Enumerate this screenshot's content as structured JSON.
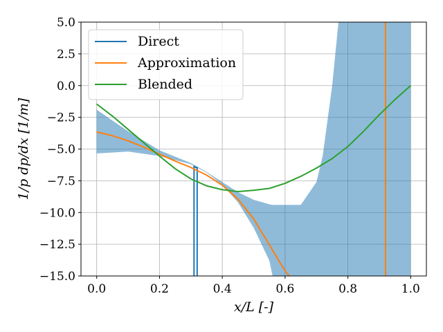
{
  "chart_data": {
    "type": "line",
    "title": "",
    "xlabel": "x/L [-]",
    "ylabel": "1/p dp/dx [1/m]",
    "xlim": [
      -0.05,
      1.05
    ],
    "ylim": [
      -15,
      5
    ],
    "x_ticks": [
      0.0,
      0.2,
      0.4,
      0.6,
      0.8,
      1.0
    ],
    "x_tick_labels": [
      "0.0",
      "0.2",
      "0.4",
      "0.6",
      "0.8",
      "1.0"
    ],
    "y_ticks": [
      5.0,
      2.5,
      0.0,
      -2.5,
      -5.0,
      -7.5,
      -10.0,
      -12.5,
      -15.0
    ],
    "y_tick_labels": [
      "5.0",
      "2.5",
      "0.0",
      "−2.5",
      "−5.0",
      "−7.5",
      "−10.0",
      "−12.5",
      "−15.0"
    ],
    "grid": true,
    "legend_position": "top-left",
    "colors": {
      "direct": "#1f77b4",
      "approximation": "#ff7f0e",
      "blended": "#2ca02c",
      "band": "#1f77b4",
      "grid": "#b0b0b0"
    },
    "band": {
      "x": [
        0.0,
        0.1,
        0.2,
        0.3,
        0.35,
        0.4,
        0.45,
        0.5,
        0.55,
        0.56,
        0.6,
        0.65,
        0.7,
        0.72,
        0.75,
        0.77,
        0.8,
        0.85,
        0.9,
        0.95,
        1.0
      ],
      "lower": [
        -5.35,
        -5.2,
        -5.55,
        -6.2,
        -6.85,
        -7.8,
        -9.2,
        -11.2,
        -13.8,
        -15.0,
        -15.0,
        -15.0,
        -15.0,
        -15.0,
        -15.0,
        -15.0,
        -15.0,
        -15.0,
        -15.0,
        -15.0,
        -15.0
      ],
      "upper": [
        -1.9,
        -3.6,
        -5.1,
        -6.1,
        -6.8,
        -7.6,
        -8.4,
        -9.0,
        -9.35,
        -9.4,
        -9.4,
        -9.4,
        -7.6,
        -5.5,
        0.0,
        5.0,
        5.0,
        5.0,
        5.0,
        5.0,
        5.0
      ]
    },
    "series": [
      {
        "name": "Direct",
        "x": [
          0.31,
          0.31,
          0.31,
          0.31,
          0.315,
          0.32,
          0.32,
          0.32
        ],
        "y": [
          -15.0,
          -6.35,
          -6.35,
          -6.35,
          -6.45,
          -6.45,
          -6.45,
          -15.0
        ]
      },
      {
        "name": "Approximation",
        "x": [
          0.0,
          0.05,
          0.1,
          0.15,
          0.2,
          0.25,
          0.3,
          0.35,
          0.4,
          0.45,
          0.5,
          0.55,
          0.6,
          0.62,
          0.92,
          0.92
        ],
        "y": [
          -3.65,
          -3.95,
          -4.35,
          -4.85,
          -5.4,
          -5.95,
          -6.45,
          -7.05,
          -7.85,
          -8.95,
          -10.5,
          -12.55,
          -14.6,
          -15.2,
          -15.2,
          5.2
        ]
      },
      {
        "name": "Blended",
        "x": [
          0.0,
          0.05,
          0.1,
          0.15,
          0.2,
          0.25,
          0.3,
          0.35,
          0.4,
          0.45,
          0.5,
          0.55,
          0.6,
          0.65,
          0.7,
          0.75,
          0.8,
          0.85,
          0.9,
          0.95,
          1.0
        ],
        "y": [
          -1.45,
          -2.4,
          -3.45,
          -4.5,
          -5.55,
          -6.55,
          -7.35,
          -7.9,
          -8.2,
          -8.35,
          -8.25,
          -8.1,
          -7.7,
          -7.15,
          -6.5,
          -5.75,
          -4.8,
          -3.6,
          -2.3,
          -1.1,
          0.0
        ]
      }
    ]
  }
}
